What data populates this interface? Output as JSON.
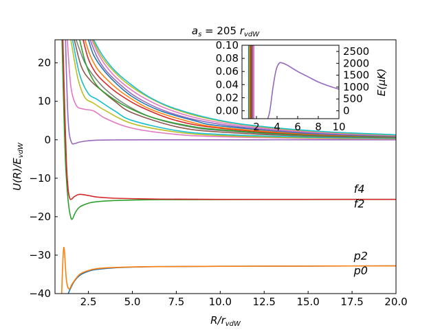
{
  "chart_data": [
    {
      "type": "line",
      "title": "a_s = 205 r_vdW",
      "xlabel": "R/r_vdW",
      "ylabel": "U(R)/E_vdW",
      "xlim": [
        0.6,
        20.0
      ],
      "ylim": [
        -40,
        26
      ],
      "xticks": [
        2.5,
        5.0,
        7.5,
        10.0,
        12.5,
        15.0,
        17.5,
        20.0
      ],
      "xtick_labels": [
        "2.5",
        "5.0",
        "7.5",
        "10.0",
        "12.5",
        "15.0",
        "17.5",
        "20.0"
      ],
      "yticks": [
        -40,
        -30,
        -20,
        -10,
        0,
        10,
        20
      ],
      "ytick_labels": [
        "−40",
        "−30",
        "−20",
        "−10",
        "0",
        "10",
        "20"
      ],
      "grid": false,
      "annotations": [
        {
          "text": "f4",
          "x": 17.6,
          "y": -13.8
        },
        {
          "text": "f2",
          "x": 17.6,
          "y": -17.6
        },
        {
          "text": "p2",
          "x": 17.6,
          "y": -31.2
        },
        {
          "text": "p0",
          "x": 17.6,
          "y": -35.0
        }
      ],
      "series": [
        {
          "label": "p0",
          "color": "#1f77b4",
          "asymptote": -32.8,
          "points": [
            [
              1.35,
              -40
            ],
            [
              1.5,
              -38.5
            ],
            [
              1.7,
              -36.8
            ],
            [
              2.0,
              -35.3
            ],
            [
              2.5,
              -34.2
            ],
            [
              3.0,
              -33.7
            ],
            [
              4.0,
              -33.3
            ],
            [
              6.0,
              -33.0
            ],
            [
              10.0,
              -32.9
            ],
            [
              20.0,
              -32.8
            ]
          ]
        },
        {
          "label": "p2",
          "color": "#ff7f0e",
          "asymptote": -32.8,
          "points": [
            [
              0.98,
              -40
            ],
            [
              1.1,
              -28
            ],
            [
              1.25,
              -36.5
            ],
            [
              1.4,
              -38.8
            ],
            [
              1.6,
              -37.3
            ],
            [
              2.0,
              -35.0
            ],
            [
              2.5,
              -34.0
            ],
            [
              3.0,
              -33.5
            ],
            [
              4.0,
              -33.2
            ],
            [
              6.0,
              -33.0
            ],
            [
              10.0,
              -32.9
            ],
            [
              20.0,
              -32.8
            ]
          ]
        },
        {
          "label": "f2",
          "color": "#2ca02c",
          "asymptote": -15.5,
          "points": [
            [
              1.0,
              26
            ],
            [
              1.1,
              8
            ],
            [
              1.2,
              -6
            ],
            [
              1.35,
              -16
            ],
            [
              1.5,
              -20.2
            ],
            [
              1.6,
              -20.5
            ],
            [
              1.75,
              -19.0
            ],
            [
              2.0,
              -17.5
            ],
            [
              2.5,
              -16.5
            ],
            [
              3.0,
              -16.1
            ],
            [
              4.0,
              -15.8
            ],
            [
              6.0,
              -15.6
            ],
            [
              10.0,
              -15.55
            ],
            [
              20.0,
              -15.5
            ]
          ]
        },
        {
          "label": "f4",
          "color": "#d62728",
          "asymptote": -15.5,
          "points": [
            [
              1.05,
              26
            ],
            [
              1.15,
              8
            ],
            [
              1.25,
              -6
            ],
            [
              1.35,
              -13
            ],
            [
              1.45,
              -15.3
            ],
            [
              1.55,
              -15.4
            ],
            [
              1.7,
              -14.8
            ],
            [
              1.9,
              -14.3
            ],
            [
              2.1,
              -14.2
            ],
            [
              2.5,
              -14.5
            ],
            [
              3.0,
              -14.9
            ],
            [
              4.0,
              -15.2
            ],
            [
              6.0,
              -15.4
            ],
            [
              10.0,
              -15.5
            ],
            [
              20.0,
              -15.5
            ]
          ]
        },
        {
          "label": "",
          "color": "#9467bd",
          "asymptote": 0.0,
          "points": [
            [
              1.2,
              26
            ],
            [
              1.3,
              10
            ],
            [
              1.4,
              2
            ],
            [
              1.55,
              -0.8
            ],
            [
              1.7,
              -1.0
            ],
            [
              2.0,
              -0.6
            ],
            [
              2.5,
              -0.25
            ],
            [
              3.0,
              -0.1
            ],
            [
              4.0,
              -0.05
            ],
            [
              6.0,
              0.0
            ],
            [
              20.0,
              0.0
            ]
          ]
        },
        {
          "label": "",
          "color": "#e377c2",
          "asymptote": 0.0,
          "points": [
            [
              1.3,
              26
            ],
            [
              1.5,
              14
            ],
            [
              1.8,
              9
            ],
            [
              2.2,
              8
            ],
            [
              2.8,
              7.5
            ],
            [
              3.5,
              5.5
            ],
            [
              5.0,
              3.0
            ],
            [
              7.5,
              1.4
            ],
            [
              10.0,
              0.8
            ],
            [
              15.0,
              0.35
            ],
            [
              20.0,
              0.2
            ]
          ]
        },
        {
          "label": "",
          "color": "#bcbd22",
          "asymptote": 0.0,
          "points": [
            [
              1.5,
              26
            ],
            [
              1.9,
              16
            ],
            [
              2.3,
              11
            ],
            [
              2.8,
              9.5
            ],
            [
              3.5,
              7.5
            ],
            [
              5.0,
              4.2
            ],
            [
              7.5,
              2.0
            ],
            [
              10.0,
              1.1
            ],
            [
              15.0,
              0.5
            ],
            [
              20.0,
              0.3
            ]
          ]
        },
        {
          "label": "",
          "color": "#17becf",
          "asymptote": 0.0,
          "points": [
            [
              1.6,
              26
            ],
            [
              2.0,
              17
            ],
            [
              2.5,
              12
            ],
            [
              3.0,
              10.5
            ],
            [
              4.0,
              7.5
            ],
            [
              5.0,
              5.0
            ],
            [
              7.5,
              2.4
            ],
            [
              10.0,
              1.4
            ],
            [
              15.0,
              0.7
            ],
            [
              20.0,
              0.4
            ]
          ]
        },
        {
          "label": "",
          "color": "#8c564b",
          "asymptote": 0.0,
          "points": [
            [
              1.7,
              26
            ],
            [
              2.1,
              19
            ],
            [
              2.6,
              15.5
            ],
            [
              3.2,
              13
            ],
            [
              4.0,
              10
            ],
            [
              5.0,
              7.0
            ],
            [
              7.5,
              3.4
            ],
            [
              10.0,
              2.0
            ],
            [
              15.0,
              0.95
            ],
            [
              20.0,
              0.55
            ]
          ]
        },
        {
          "label": "",
          "color": "#7f7f7f",
          "asymptote": 0.0,
          "points": [
            [
              1.8,
              26
            ],
            [
              2.3,
              20
            ],
            [
              2.9,
              16
            ],
            [
              3.5,
              13
            ],
            [
              4.5,
              9.5
            ],
            [
              6.0,
              6.0
            ],
            [
              8.0,
              3.6
            ],
            [
              10.0,
              2.4
            ],
            [
              15.0,
              1.1
            ],
            [
              20.0,
              0.65
            ]
          ]
        },
        {
          "label": "",
          "color": "#2ca02c",
          "asymptote": 0.0,
          "points": [
            [
              2.0,
              26
            ],
            [
              2.3,
              20.5
            ],
            [
              2.6,
              17
            ],
            [
              3.0,
              14
            ],
            [
              3.5,
              12
            ],
            [
              4.5,
              9.0
            ],
            [
              6.0,
              6.0
            ],
            [
              8.0,
              3.8
            ],
            [
              10.0,
              2.6
            ],
            [
              15.0,
              1.2
            ],
            [
              20.0,
              0.7
            ]
          ]
        },
        {
          "label": "",
          "color": "#d62728",
          "asymptote": 0.0,
          "points": [
            [
              2.2,
              26
            ],
            [
              2.5,
              21
            ],
            [
              2.9,
              17.5
            ],
            [
              3.4,
              15
            ],
            [
              4.2,
              12
            ],
            [
              5.5,
              8.5
            ],
            [
              7.5,
              5.0
            ],
            [
              10.0,
              3.0
            ],
            [
              15.0,
              1.4
            ],
            [
              20.0,
              0.8
            ]
          ]
        },
        {
          "label": "",
          "color": "#ff7f0e",
          "asymptote": 0.0,
          "points": [
            [
              2.3,
              26
            ],
            [
              2.6,
              22
            ],
            [
              3.0,
              18.5
            ],
            [
              3.6,
              15.5
            ],
            [
              4.5,
              12
            ],
            [
              6.0,
              8.0
            ],
            [
              8.0,
              5.0
            ],
            [
              10.0,
              3.2
            ],
            [
              15.0,
              1.5
            ],
            [
              20.0,
              0.85
            ]
          ]
        },
        {
          "label": "",
          "color": "#1f77b4",
          "asymptote": 0.0,
          "points": [
            [
              2.5,
              26
            ],
            [
              2.8,
              22
            ],
            [
              3.3,
              18.5
            ],
            [
              4.0,
              15
            ],
            [
              5.0,
              11.2
            ],
            [
              6.5,
              7.7
            ],
            [
              8.5,
              5.0
            ],
            [
              10.0,
              3.6
            ],
            [
              15.0,
              1.65
            ],
            [
              20.0,
              0.9
            ]
          ]
        },
        {
          "label": "",
          "color": "#9467bd",
          "asymptote": 0.0,
          "points": [
            [
              2.6,
              26
            ],
            [
              3.0,
              21.5
            ],
            [
              3.5,
              18
            ],
            [
              4.2,
              14.8
            ],
            [
              5.2,
              11.2
            ],
            [
              6.8,
              7.6
            ],
            [
              9.0,
              4.8
            ],
            [
              12.0,
              2.9
            ],
            [
              16.0,
              1.6
            ],
            [
              20.0,
              1.0
            ]
          ]
        },
        {
          "label": "",
          "color": "#e377c2",
          "asymptote": 0.0,
          "points": [
            [
              2.7,
              26
            ],
            [
              3.1,
              22
            ],
            [
              3.7,
              18
            ],
            [
              4.5,
              14.5
            ],
            [
              5.5,
              11.3
            ],
            [
              7.0,
              8.0
            ],
            [
              9.0,
              5.3
            ],
            [
              12.0,
              3.2
            ],
            [
              16.0,
              1.8
            ],
            [
              20.0,
              1.1
            ]
          ]
        },
        {
          "label": "",
          "color": "#bcbd22",
          "asymptote": 0.0,
          "points": [
            [
              2.75,
              26
            ],
            [
              3.2,
              22
            ],
            [
              3.8,
              18.5
            ],
            [
              4.6,
              15
            ],
            [
              5.7,
              11.6
            ],
            [
              7.2,
              8.3
            ],
            [
              9.3,
              5.5
            ],
            [
              12.0,
              3.5
            ],
            [
              16.0,
              2.0
            ],
            [
              20.0,
              1.2
            ]
          ]
        },
        {
          "label": "",
          "color": "#17becf",
          "asymptote": 0.0,
          "points": [
            [
              2.8,
              26
            ],
            [
              3.3,
              22
            ],
            [
              4.0,
              18
            ],
            [
              4.8,
              14.8
            ],
            [
              6.0,
              11.0
            ],
            [
              7.5,
              8.0
            ],
            [
              10.0,
              5.0
            ],
            [
              12.5,
              3.4
            ],
            [
              16.0,
              2.1
            ],
            [
              20.0,
              1.3
            ]
          ]
        }
      ]
    },
    {
      "type": "line",
      "title": "",
      "xlabel": "",
      "ylabel": "E(μK)",
      "xlim": [
        0.6,
        10.0
      ],
      "ylim_left": [
        -0.012,
        0.1
      ],
      "ylim_right": [
        -331.2,
        2760
      ],
      "xticks": [
        2,
        4,
        6,
        8,
        10
      ],
      "xtick_labels": [
        "2",
        "4",
        "6",
        "8",
        "10"
      ],
      "yticks_left": [
        0.0,
        0.02,
        0.04,
        0.06,
        0.08,
        0.1
      ],
      "ytick_labels_left": [
        "0.00",
        "0.02",
        "0.04",
        "0.06",
        "0.08",
        "0.10"
      ],
      "yticks_right": [
        0,
        500,
        1000,
        1500,
        2000,
        2500
      ],
      "ytick_labels_right": [
        "0",
        "500",
        "1000",
        "1500",
        "2000",
        "2500"
      ],
      "grid": false,
      "vertical_lines": {
        "x": [
          1.26,
          1.34,
          1.42,
          1.5,
          1.58,
          1.66,
          1.74
        ],
        "colors": [
          "#1f77b4",
          "#ff7f0e",
          "#2ca02c",
          "#d62728",
          "#8c564b",
          "#9467bd",
          "#e377c2"
        ]
      },
      "series": [
        {
          "label": "",
          "color": "#9467bd",
          "points": [
            [
              3.1,
              -0.012
            ],
            [
              3.3,
              0.0
            ],
            [
              3.6,
              0.035
            ],
            [
              3.9,
              0.062
            ],
            [
              4.2,
              0.0725
            ],
            [
              4.5,
              0.073
            ],
            [
              5.0,
              0.0695
            ],
            [
              6.0,
              0.06
            ],
            [
              7.0,
              0.052
            ],
            [
              8.0,
              0.044
            ],
            [
              9.0,
              0.038
            ],
            [
              10.0,
              0.033
            ]
          ]
        }
      ]
    }
  ]
}
